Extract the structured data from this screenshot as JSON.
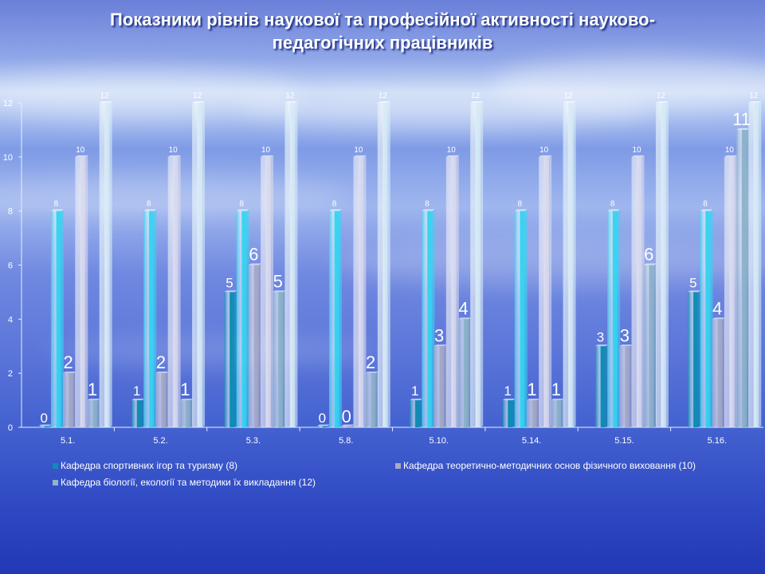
{
  "title_line1": "Показники рівнів наукової та професійної активності науково-",
  "title_line2": "педагогічних працівників",
  "chart_data": {
    "type": "bar",
    "categories": [
      "5.1.",
      "5.2.",
      "5.3.",
      "5.8.",
      "5.10.",
      "5.14.",
      "5.15.",
      "5.16."
    ],
    "ylim": [
      0,
      12
    ],
    "yticks": [
      0,
      2,
      4,
      6,
      8,
      10,
      12
    ],
    "series": [
      {
        "name": "Кафедра спортивних ігор та туризму (8)",
        "values": [
          0,
          1,
          5,
          0,
          1,
          1,
          3,
          5
        ],
        "color": "#0b8fb3",
        "label_size": "medium"
      },
      {
        "name": "",
        "values": [
          8,
          8,
          8,
          8,
          8,
          8,
          8,
          8
        ],
        "color": "#35d6f2",
        "label_size": "small"
      },
      {
        "name": "Кафедра теоретично-методичних основ фізичного виховання (10)",
        "values": [
          2,
          2,
          6,
          0,
          3,
          1,
          3,
          4
        ],
        "color": "#a7abc6",
        "label_size": "large"
      },
      {
        "name": "",
        "values": [
          10,
          10,
          10,
          10,
          10,
          10,
          10,
          10
        ],
        "color": "#dcdcee",
        "label_size": "small"
      },
      {
        "name": "Кафедра біології, екології та методики їх викладання (12)",
        "values": [
          1,
          1,
          5,
          2,
          4,
          1,
          6,
          11
        ],
        "color": "#8fb4c8",
        "label_size": "large"
      },
      {
        "name": "",
        "values": [
          12,
          12,
          12,
          12,
          12,
          12,
          12,
          12
        ],
        "color": "#d8ecf6",
        "label_size": "small"
      }
    ],
    "legend_position": "bottom",
    "grid": false
  }
}
